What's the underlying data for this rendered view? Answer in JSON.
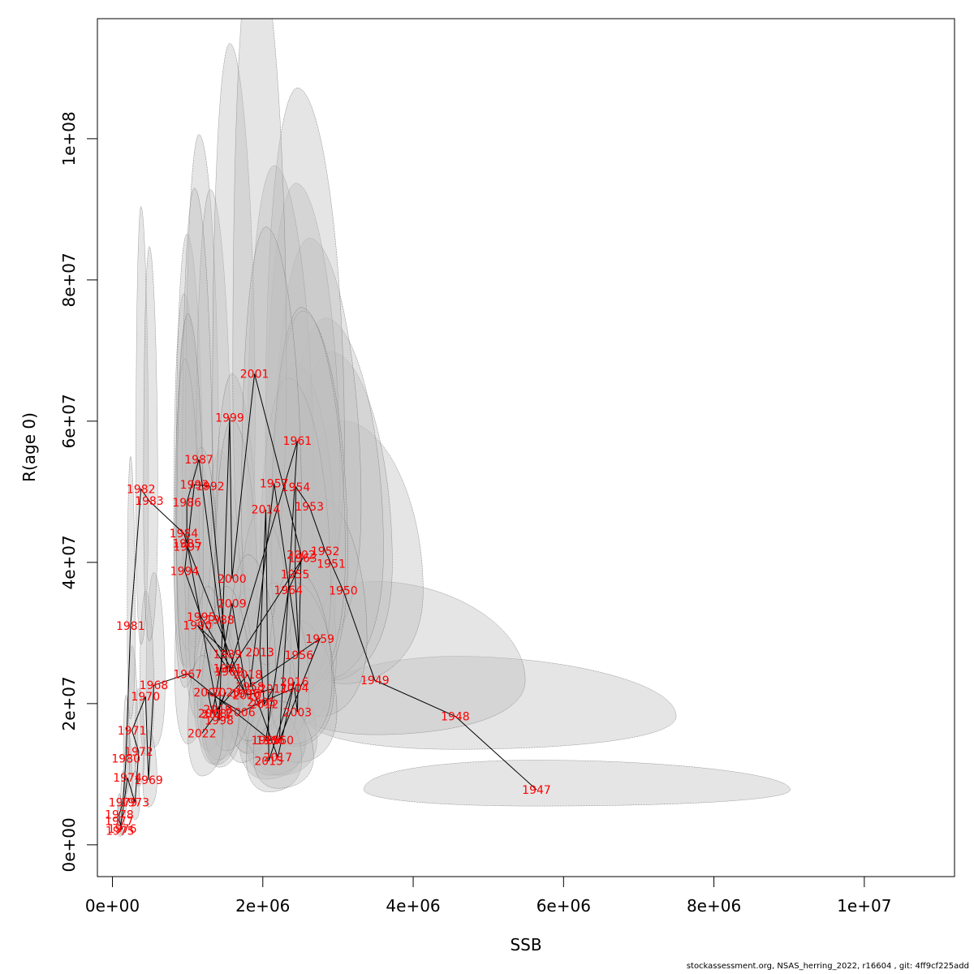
{
  "chart_data": {
    "type": "scatter",
    "xlabel": "SSB",
    "ylabel": "R(age 0)",
    "xlim": [
      -200000,
      11200000
    ],
    "ylim": [
      -4500000,
      117000000
    ],
    "x_ticks": [
      0,
      2000000,
      4000000,
      6000000,
      8000000,
      10000000
    ],
    "x_tick_labels": [
      "0e+00",
      "2e+06",
      "4e+06",
      "6e+06",
      "8e+06",
      "1e+07"
    ],
    "y_ticks": [
      0,
      20000000,
      40000000,
      60000000,
      80000000,
      100000000
    ],
    "y_tick_labels": [
      "0e+00",
      "2e+07",
      "4e+07",
      "6e+07",
      "8e+07",
      "1e+08"
    ],
    "grid": false,
    "legend": "none",
    "colors": {
      "label": "#ff0000",
      "line": "#000000",
      "ellipse_fill": "#bebebe",
      "ellipse_stroke": "#555555"
    },
    "points": [
      {
        "year": "1947",
        "ssb": 5640000,
        "rec": 7800000,
        "sx": 2700000,
        "sy": 4200000
      },
      {
        "year": "1948",
        "ssb": 4560000,
        "rec": 18200000,
        "sx": 2350000,
        "sy": 8500000
      },
      {
        "year": "1949",
        "ssb": 3490000,
        "rec": 23300000,
        "sx": 1600000,
        "sy": 14000000
      },
      {
        "year": "1950",
        "ssb": 3070000,
        "rec": 36000000,
        "sx": 850000,
        "sy": 24000000
      },
      {
        "year": "1951",
        "ssb": 2910000,
        "rec": 39800000,
        "sx": 650000,
        "sy": 30000000
      },
      {
        "year": "1952",
        "ssb": 2830000,
        "rec": 41600000,
        "sx": 620000,
        "sy": 33000000
      },
      {
        "year": "1953",
        "ssb": 2620000,
        "rec": 47900000,
        "sx": 550000,
        "sy": 38000000
      },
      {
        "year": "1954",
        "ssb": 2440000,
        "rec": 50700000,
        "sx": 470000,
        "sy": 43000000
      },
      {
        "year": "1955",
        "ssb": 2430000,
        "rec": 38300000,
        "sx": 440000,
        "sy": 30000000
      },
      {
        "year": "1956",
        "ssb": 2480000,
        "rec": 26900000,
        "sx": 400000,
        "sy": 18000000
      },
      {
        "year": "1957",
        "ssb": 2150000,
        "rec": 51200000,
        "sx": 420000,
        "sy": 45000000
      },
      {
        "year": "1958",
        "ssb": 1830000,
        "rec": 22400000,
        "sx": 330000,
        "sy": 15000000
      },
      {
        "year": "1959",
        "ssb": 2760000,
        "rec": 29200000,
        "sx": 500000,
        "sy": 20000000
      },
      {
        "year": "1960",
        "ssb": 2220000,
        "rec": 14800000,
        "sx": 400000,
        "sy": 9000000
      },
      {
        "year": "1961",
        "ssb": 2460000,
        "rec": 57200000,
        "sx": 500000,
        "sy": 50000000
      },
      {
        "year": "1962",
        "ssb": 1550000,
        "rec": 24500000,
        "sx": 280000,
        "sy": 18000000
      },
      {
        "year": "1963",
        "ssb": 2530000,
        "rec": 40600000,
        "sx": 480000,
        "sy": 35000000
      },
      {
        "year": "1964",
        "ssb": 2340000,
        "rec": 36100000,
        "sx": 450000,
        "sy": 30000000
      },
      {
        "year": "1965",
        "ssb": 2040000,
        "rec": 14800000,
        "sx": 420000,
        "sy": 10000000
      },
      {
        "year": "1966",
        "ssb": 2100000,
        "rec": 14800000,
        "sx": 380000,
        "sy": 9000000
      },
      {
        "year": "1967",
        "ssb": 1000000,
        "rec": 24200000,
        "sx": 200000,
        "sy": 18000000
      },
      {
        "year": "1968",
        "ssb": 550000,
        "rec": 22600000,
        "sx": 120000,
        "sy": 16000000
      },
      {
        "year": "1969",
        "ssb": 480000,
        "rec": 9200000,
        "sx": 90000,
        "sy": 7000000
      },
      {
        "year": "1970",
        "ssb": 440000,
        "rec": 21000000,
        "sx": 90000,
        "sy": 15000000
      },
      {
        "year": "1971",
        "ssb": 260000,
        "rec": 16200000,
        "sx": 60000,
        "sy": 12000000
      },
      {
        "year": "1972",
        "ssb": 350000,
        "rec": 13200000,
        "sx": 60000,
        "sy": 9000000
      },
      {
        "year": "1973",
        "ssb": 300000,
        "rec": 6000000,
        "sx": 50000,
        "sy": 4500000
      },
      {
        "year": "1974",
        "ssb": 200000,
        "rec": 9500000,
        "sx": 45000,
        "sy": 7000000
      },
      {
        "year": "1975",
        "ssb": 100000,
        "rec": 2000000,
        "sx": 25000,
        "sy": 1500000
      },
      {
        "year": "1976",
        "ssb": 130000,
        "rec": 2300000,
        "sx": 30000,
        "sy": 1800000
      },
      {
        "year": "1977",
        "ssb": 90000,
        "rec": 3400000,
        "sx": 25000,
        "sy": 2500000
      },
      {
        "year": "1978",
        "ssb": 90000,
        "rec": 4300000,
        "sx": 25000,
        "sy": 3000000
      },
      {
        "year": "1979",
        "ssb": 140000,
        "rec": 6000000,
        "sx": 35000,
        "sy": 4500000
      },
      {
        "year": "1980",
        "ssb": 180000,
        "rec": 12200000,
        "sx": 40000,
        "sy": 9000000
      },
      {
        "year": "1981",
        "ssb": 240000,
        "rec": 31000000,
        "sx": 50000,
        "sy": 24000000
      },
      {
        "year": "1982",
        "ssb": 380000,
        "rec": 50400000,
        "sx": 80000,
        "sy": 40000000
      },
      {
        "year": "1983",
        "ssb": 490000,
        "rec": 48700000,
        "sx": 90000,
        "sy": 36000000
      },
      {
        "year": "1984",
        "ssb": 950000,
        "rec": 44100000,
        "sx": 160000,
        "sy": 34000000
      },
      {
        "year": "1985",
        "ssb": 990000,
        "rec": 42700000,
        "sx": 170000,
        "sy": 32000000
      },
      {
        "year": "1986",
        "ssb": 990000,
        "rec": 48500000,
        "sx": 170000,
        "sy": 38000000
      },
      {
        "year": "1987",
        "ssb": 1150000,
        "rec": 54600000,
        "sx": 210000,
        "sy": 46000000
      },
      {
        "year": "1988",
        "ssb": 1430000,
        "rec": 31900000,
        "sx": 230000,
        "sy": 24000000
      },
      {
        "year": "1989",
        "ssb": 1530000,
        "rec": 27000000,
        "sx": 250000,
        "sy": 20000000
      },
      {
        "year": "1990",
        "ssb": 1130000,
        "rec": 31100000,
        "sx": 190000,
        "sy": 24000000
      },
      {
        "year": "1991",
        "ssb": 1530000,
        "rec": 25000000,
        "sx": 250000,
        "sy": 18000000
      },
      {
        "year": "1992",
        "ssb": 1300000,
        "rec": 50800000,
        "sx": 220000,
        "sy": 42000000
      },
      {
        "year": "1993",
        "ssb": 1090000,
        "rec": 51000000,
        "sx": 190000,
        "sy": 42000000
      },
      {
        "year": "1994",
        "ssb": 960000,
        "rec": 38800000,
        "sx": 160000,
        "sy": 30000000
      },
      {
        "year": "1995",
        "ssb": 1180000,
        "rec": 32300000,
        "sx": 200000,
        "sy": 24000000
      },
      {
        "year": "1996",
        "ssb": 1770000,
        "rec": 21400000,
        "sx": 300000,
        "sy": 15000000
      },
      {
        "year": "1997",
        "ssb": 1000000,
        "rec": 42200000,
        "sx": 170000,
        "sy": 33000000
      },
      {
        "year": "1998",
        "ssb": 1420000,
        "rec": 17600000,
        "sx": 240000,
        "sy": 12000000
      },
      {
        "year": "1999",
        "ssb": 1560000,
        "rec": 60500000,
        "sx": 270000,
        "sy": 53000000
      },
      {
        "year": "2000",
        "ssb": 1590000,
        "rec": 37700000,
        "sx": 270000,
        "sy": 29000000
      },
      {
        "year": "2001",
        "ssb": 1890000,
        "rec": 66700000,
        "sx": 340000,
        "sy": 62000000
      },
      {
        "year": "2002",
        "ssb": 2510000,
        "rec": 41100000,
        "sx": 470000,
        "sy": 35000000
      },
      {
        "year": "2003",
        "ssb": 2460000,
        "rec": 18800000,
        "sx": 420000,
        "sy": 13000000
      },
      {
        "year": "2004",
        "ssb": 2420000,
        "rec": 22200000,
        "sx": 420000,
        "sy": 15000000
      },
      {
        "year": "2005",
        "ssb": 1980000,
        "rec": 20200000,
        "sx": 330000,
        "sy": 14000000
      },
      {
        "year": "2006",
        "ssb": 1710000,
        "rec": 18800000,
        "sx": 290000,
        "sy": 13000000
      },
      {
        "year": "2007",
        "ssb": 1270000,
        "rec": 21600000,
        "sx": 220000,
        "sy": 15000000
      },
      {
        "year": "2008",
        "ssb": 1330000,
        "rec": 18600000,
        "sx": 230000,
        "sy": 13000000
      },
      {
        "year": "2009",
        "ssb": 1590000,
        "rec": 34200000,
        "sx": 270000,
        "sy": 26000000
      },
      {
        "year": "2010",
        "ssb": 1790000,
        "rec": 21200000,
        "sx": 300000,
        "sy": 15000000
      },
      {
        "year": "2011",
        "ssb": 2140000,
        "rec": 22100000,
        "sx": 380000,
        "sy": 15000000
      },
      {
        "year": "2012",
        "ssb": 2020000,
        "rec": 19900000,
        "sx": 340000,
        "sy": 14000000
      },
      {
        "year": "2013",
        "ssb": 1960000,
        "rec": 27300000,
        "sx": 330000,
        "sy": 20000000
      },
      {
        "year": "2014",
        "ssb": 2040000,
        "rec": 47500000,
        "sx": 380000,
        "sy": 40000000
      },
      {
        "year": "2015",
        "ssb": 2080000,
        "rec": 11900000,
        "sx": 350000,
        "sy": 8000000
      },
      {
        "year": "2016",
        "ssb": 2420000,
        "rec": 23100000,
        "sx": 400000,
        "sy": 16000000
      },
      {
        "year": "2017",
        "ssb": 2200000,
        "rec": 12400000,
        "sx": 380000,
        "sy": 8000000
      },
      {
        "year": "2018",
        "ssb": 1800000,
        "rec": 24100000,
        "sx": 300000,
        "sy": 17000000
      },
      {
        "year": "2019",
        "ssb": 1400000,
        "rec": 19200000,
        "sx": 240000,
        "sy": 13000000
      },
      {
        "year": "2020",
        "ssb": 1510000,
        "rec": 21600000,
        "sx": 260000,
        "sy": 15000000
      },
      {
        "year": "2021",
        "ssb": 1380000,
        "rec": 18500000,
        "sx": 240000,
        "sy": 13000000
      },
      {
        "year": "2022",
        "ssb": 1190000,
        "rec": 15800000,
        "sx": 220000,
        "sy": 11000000
      }
    ]
  },
  "footer": "stockassessment.org, NSAS_herring_2022, r16604 , git: 4ff9cf225add"
}
